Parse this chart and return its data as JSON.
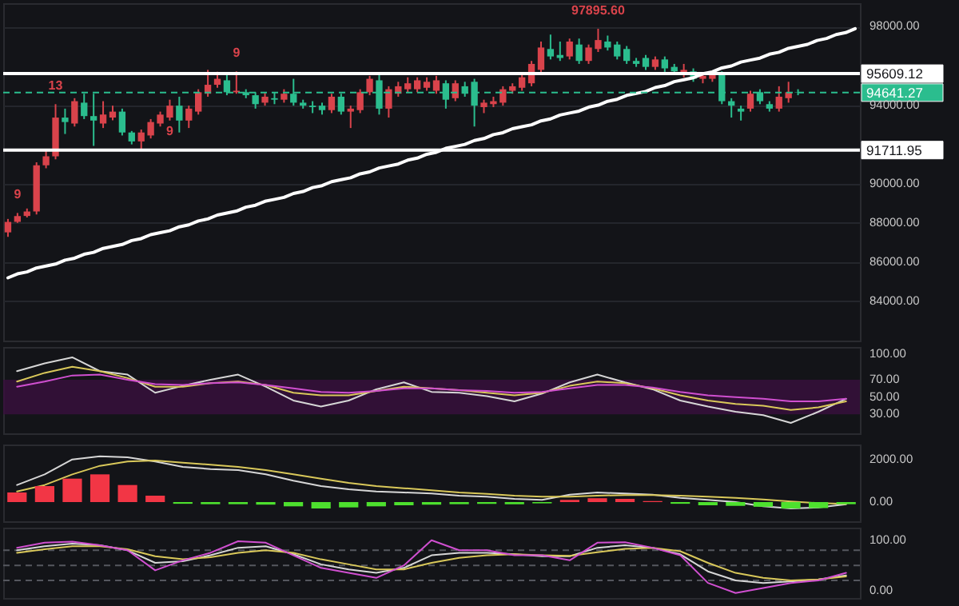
{
  "chart_data": [
    {
      "type": "candlestick",
      "categories": [
        null,
        null,
        null,
        null,
        null,
        null,
        null,
        null,
        null,
        null,
        null,
        null,
        null,
        null,
        null,
        null,
        null,
        null,
        null,
        null,
        null,
        null,
        null,
        null,
        null,
        null,
        null,
        null,
        null,
        null,
        null,
        null,
        null,
        null,
        null,
        null,
        null,
        null,
        null,
        null,
        null,
        null,
        null,
        null,
        null,
        null,
        null,
        null,
        null,
        null,
        null,
        null,
        null,
        null,
        null,
        null,
        null,
        null,
        null,
        null,
        null,
        null,
        null,
        null,
        null,
        null,
        null,
        null,
        null,
        null,
        null,
        null,
        null,
        null,
        null,
        null,
        null,
        null,
        null,
        null,
        null,
        null,
        null,
        null,
        null,
        null,
        null,
        null,
        null,
        null
      ],
      "ohlc": [
        [
          87517,
          88201,
          87289,
          88049
        ],
        [
          88049,
          88505,
          88000,
          88353
        ],
        [
          88353,
          88733,
          88277,
          88581
        ],
        [
          88581,
          91089,
          88429,
          90937
        ],
        [
          90937,
          91697,
          90785,
          91393
        ],
        [
          91393,
          94053,
          91241,
          93369
        ],
        [
          93369,
          93825,
          92533,
          93141
        ],
        [
          93065,
          94357,
          92913,
          94205
        ],
        [
          94129,
          94585,
          93293,
          93445
        ],
        [
          93445,
          94585,
          91925,
          93217
        ],
        [
          93065,
          94205,
          92837,
          93521
        ],
        [
          93369,
          93977,
          93230,
          93673
        ],
        [
          93673,
          93825,
          92457,
          92609
        ],
        [
          92609,
          92685,
          92001,
          92153
        ],
        [
          92153,
          92761,
          91773,
          92609
        ],
        [
          92457,
          93293,
          92305,
          93141
        ],
        [
          93065,
          93673,
          92913,
          93521
        ],
        [
          93369,
          94281,
          93217,
          93977
        ],
        [
          93977,
          94433,
          92609,
          93217
        ],
        [
          93217,
          93977,
          92837,
          93825
        ],
        [
          93673,
          94813,
          93521,
          94661
        ],
        [
          94585,
          95801,
          94433,
          95041
        ],
        [
          95041,
          95700,
          94889,
          95345
        ],
        [
          95269,
          95573,
          94509,
          94661
        ],
        [
          94661,
          95725,
          94585,
          94737
        ],
        [
          94661,
          94813,
          94357,
          94509
        ],
        [
          94509,
          94661,
          93825,
          94053
        ],
        [
          94129,
          94661,
          93977,
          94433
        ],
        [
          94357,
          94661,
          94053,
          94281
        ],
        [
          94281,
          94813,
          94129,
          94585
        ],
        [
          94585,
          95345,
          93977,
          94129
        ],
        [
          94129,
          94281,
          93825,
          93977
        ],
        [
          93977,
          94205,
          93597,
          93901
        ],
        [
          93977,
          94129,
          93521,
          93749
        ],
        [
          93749,
          94585,
          93597,
          94433
        ],
        [
          94433,
          94585,
          93521,
          93673
        ],
        [
          93673,
          93977,
          92837,
          93825
        ],
        [
          93749,
          94813,
          93597,
          94661
        ],
        [
          94661,
          95497,
          94509,
          95345
        ],
        [
          95269,
          95573,
          93521,
          93825
        ],
        [
          93825,
          94965,
          93369,
          94813
        ],
        [
          94585,
          95193,
          94433,
          94965
        ],
        [
          94813,
          95421,
          94661,
          95117
        ],
        [
          94813,
          95421,
          94661,
          95269
        ],
        [
          94889,
          95421,
          94737,
          95193
        ],
        [
          94737,
          95497,
          94585,
          95269
        ],
        [
          95117,
          95269,
          93825,
          94281
        ],
        [
          94357,
          95269,
          94205,
          95117
        ],
        [
          94965,
          95193,
          94433,
          94585
        ],
        [
          95193,
          95345,
          92913,
          93977
        ],
        [
          93901,
          94281,
          93597,
          94129
        ],
        [
          94053,
          94433,
          93901,
          94205
        ],
        [
          94129,
          94965,
          93977,
          94813
        ],
        [
          94737,
          95117,
          94585,
          94965
        ],
        [
          94889,
          95573,
          94737,
          95421
        ],
        [
          95117,
          96257,
          94965,
          96105
        ],
        [
          95801,
          97245,
          95649,
          96941
        ],
        [
          96865,
          97600,
          96333,
          96485
        ],
        [
          96561,
          97245,
          96257,
          96409
        ],
        [
          96485,
          97397,
          96333,
          97245
        ],
        [
          97093,
          97397,
          96105,
          96257
        ],
        [
          96257,
          97093,
          96105,
          96941
        ],
        [
          96865,
          97895.6,
          96713,
          97321
        ],
        [
          97245,
          97549,
          96789,
          96941
        ],
        [
          97093,
          97245,
          96333,
          96485
        ],
        [
          96865,
          97017,
          96105,
          96257
        ],
        [
          96257,
          96409,
          95953,
          96105
        ],
        [
          96409,
          96561,
          95801,
          95953
        ],
        [
          95953,
          96485,
          95801,
          96333
        ],
        [
          96333,
          96485,
          95700,
          95877
        ],
        [
          95953,
          96105,
          95573,
          95725
        ],
        [
          95573,
          96105,
          95421,
          95801
        ],
        [
          95725,
          95877,
          95193,
          95345
        ],
        [
          95345,
          95649,
          95117,
          95497
        ],
        [
          95345,
          95710,
          95193,
          95573
        ],
        [
          95573,
          95725,
          94053,
          94205
        ],
        [
          94205,
          94357,
          93369,
          93977
        ],
        [
          93825,
          93977,
          93217,
          93673
        ],
        [
          93825,
          94737,
          93673,
          94585
        ],
        [
          94661,
          94813,
          94053,
          94205
        ],
        [
          94053,
          94205,
          93673,
          93825
        ],
        [
          93825,
          94965,
          93673,
          94433
        ],
        [
          94357,
          95193,
          94129,
          94661
        ],
        [
          94661,
          94813,
          94509,
          94641.27
        ],
        null,
        null,
        null,
        null,
        null,
        null
      ],
      "colors": [
        "#d9434b",
        "#d9434b",
        "#d9434b",
        "#d9434b",
        "#d9434b",
        "#d9434b",
        "#2bbd8e",
        "#d9434b",
        "#2bbd8e",
        "#2bbd8e",
        "#d9434b",
        "#d9434b",
        "#2bbd8e",
        "#2bbd8e",
        "#d9434b",
        "#d9434b",
        "#d9434b",
        "#d9434b",
        "#2bbd8e",
        "#d9434b",
        "#d9434b",
        "#d9434b",
        "#d9434b",
        "#2bbd8e",
        "#d9434b",
        "#2bbd8e",
        "#2bbd8e",
        "#d9434b",
        "#2bbd8e",
        "#d9434b",
        "#2bbd8e",
        "#2bbd8e",
        "#2bbd8e",
        "#2bbd8e",
        "#d9434b",
        "#2bbd8e",
        "#d9434b",
        "#d9434b",
        "#d9434b",
        "#2bbd8e",
        "#d9434b",
        "#d9434b",
        "#d9434b",
        "#d9434b",
        "#d9434b",
        "#d9434b",
        "#2bbd8e",
        "#d9434b",
        "#2bbd8e",
        "#2bbd8e",
        "#d9434b",
        "#d9434b",
        "#d9434b",
        "#d9434b",
        "#d9434b",
        "#d9434b",
        "#d9434b",
        "#2bbd8e",
        "#2bbd8e",
        "#d9434b",
        "#2bbd8e",
        "#d9434b",
        "#d9434b",
        "#2bbd8e",
        "#2bbd8e",
        "#2bbd8e",
        "#2bbd8e",
        "#2bbd8e",
        "#d9434b",
        "#2bbd8e",
        "#2bbd8e",
        "#d9434b",
        "#2bbd8e",
        "#d9434b",
        "#d9434b",
        "#2bbd8e",
        "#2bbd8e",
        "#2bbd8e",
        "#d9434b",
        "#2bbd8e",
        "#2bbd8e",
        "#d9434b",
        "#d9434b",
        "#2bbd8e",
        null,
        null,
        null,
        null,
        null,
        null
      ],
      "series": [
        {
          "type": "line",
          "color": "#ffffff",
          "values": [
            85200,
            85400,
            85500,
            85700,
            85800,
            85900,
            86100,
            86200,
            86400,
            86500,
            86700,
            86800,
            86900,
            87100,
            87200,
            87400,
            87500,
            87600,
            87800,
            87900,
            88100,
            88200,
            88400,
            88500,
            88600,
            88800,
            88900,
            89100,
            89200,
            89300,
            89500,
            89600,
            89800,
            89900,
            90100,
            90200,
            90300,
            90500,
            90600,
            90800,
            90900,
            91000,
            91200,
            91300,
            91500,
            91600,
            91800,
            91900,
            92000,
            92200,
            92300,
            92500,
            92600,
            92800,
            92900,
            93000,
            93200,
            93300,
            93500,
            93600,
            93700,
            93900,
            94000,
            94200,
            94300,
            94500,
            94600,
            94700,
            94900,
            95000,
            95200,
            95300,
            95400,
            95600,
            95700,
            95900,
            96000,
            96200,
            96300,
            96400,
            96600,
            96700,
            96900,
            97000,
            97100,
            97300,
            97400,
            97600,
            97700,
            97900
          ]
        }
      ],
      "ylim": [
        82000,
        99200
      ],
      "yticks": [
        {
          "value": 84000,
          "label": "84000.00"
        },
        {
          "value": 86000,
          "label": "86000.00"
        },
        {
          "value": 88000,
          "label": "88000.00"
        },
        {
          "value": 90000,
          "label": "90000.00"
        },
        {
          "value": 94000,
          "label": "94000.00"
        },
        {
          "value": 98000,
          "label": "98000.00"
        }
      ],
      "tick_labels": "y",
      "grid": "y",
      "ref_lines": [
        {
          "axis": "y",
          "value": 95609.12,
          "label": "95609.12",
          "color": "#ffffff",
          "line_style": "solid"
        },
        {
          "axis": "y",
          "value": 91711.95,
          "label": "91711.95",
          "color": "#ffffff",
          "line_style": "solid"
        },
        {
          "axis": "y",
          "value": 94641.27,
          "label": "94641.27",
          "color": "#2bbd8e",
          "line_style": "dashed"
        }
      ],
      "annotations": [
        {
          "text": "97895.60",
          "y": 97895.6
        },
        {
          "text": "9",
          "y": 88505
        },
        {
          "text": "13",
          "y": 94053
        },
        {
          "text": "9",
          "y": 95725
        },
        {
          "text": "9",
          "y": 93217
        }
      ]
    },
    {
      "type": "line",
      "categories": [
        null,
        null,
        null,
        null,
        null,
        null,
        null,
        null,
        null,
        null,
        null,
        null,
        null,
        null,
        null,
        null,
        null,
        null,
        null,
        null,
        null,
        null,
        null,
        null,
        null,
        null,
        null,
        null,
        null,
        null,
        null
      ],
      "series": [
        {
          "color": "#d6d6d6",
          "values": [
            80,
            89,
            96,
            80,
            76,
            55,
            63,
            70,
            76,
            62,
            46,
            39,
            46,
            59,
            67,
            56,
            55,
            51,
            45,
            54,
            67,
            76,
            67,
            59,
            46,
            39,
            33,
            29,
            20,
            33,
            48
          ]
        },
        {
          "color": "#d9c85a",
          "values": [
            68,
            78,
            85,
            80,
            72,
            62,
            62,
            66,
            68,
            64,
            55,
            52,
            52,
            57,
            62,
            60,
            58,
            55,
            52,
            55,
            63,
            68,
            66,
            60,
            52,
            46,
            42,
            40,
            35,
            38,
            45
          ]
        },
        {
          "color": "#d04fd0",
          "values": [
            62,
            68,
            75,
            76,
            70,
            65,
            64,
            66,
            67,
            64,
            60,
            56,
            55,
            57,
            60,
            60,
            58,
            57,
            55,
            56,
            60,
            64,
            64,
            61,
            56,
            52,
            50,
            48,
            45,
            45,
            48
          ]
        }
      ],
      "ylim": [
        8,
        108
      ],
      "yticks": [
        {
          "value": 30,
          "label": "30.00"
        },
        {
          "value": 50,
          "label": "50.00"
        },
        {
          "value": 70,
          "label": "70.00"
        },
        {
          "value": 100,
          "label": "100.00"
        }
      ],
      "tick_labels": "y",
      "bands": [
        {
          "axis": "y",
          "from": 30,
          "to": 70,
          "color": "#3a0f3f"
        }
      ]
    },
    {
      "type": "bar",
      "categories": [
        null,
        null,
        null,
        null,
        null,
        null,
        null,
        null,
        null,
        null,
        null,
        null,
        null,
        null,
        null,
        null,
        null,
        null,
        null,
        null,
        null,
        null,
        null,
        null,
        null,
        null,
        null,
        null,
        null,
        null,
        null
      ],
      "values": [
        450,
        750,
        1100,
        1300,
        800,
        300,
        -80,
        -100,
        -100,
        -120,
        -200,
        -300,
        -250,
        -200,
        -150,
        -120,
        -100,
        -80,
        -100,
        -60,
        100,
        180,
        150,
        50,
        -80,
        -150,
        -180,
        -220,
        -300,
        -280,
        -100
      ],
      "colors": [
        "#f23645",
        "#f23645",
        "#f23645",
        "#f23645",
        "#f23645",
        "#f23645",
        "#4de02e",
        "#4de02e",
        "#4de02e",
        "#4de02e",
        "#4de02e",
        "#4de02e",
        "#4de02e",
        "#4de02e",
        "#4de02e",
        "#4de02e",
        "#4de02e",
        "#4de02e",
        "#4de02e",
        "#4de02e",
        "#f23645",
        "#f23645",
        "#f23645",
        "#f23645",
        "#4de02e",
        "#4de02e",
        "#4de02e",
        "#4de02e",
        "#4de02e",
        "#4de02e",
        "#4de02e"
      ],
      "series": [
        {
          "type": "line",
          "color": "#d6d6d6",
          "values": [
            800,
            1300,
            2000,
            2150,
            2100,
            1900,
            1650,
            1550,
            1500,
            1300,
            1000,
            750,
            600,
            500,
            450,
            400,
            300,
            250,
            150,
            100,
            350,
            450,
            400,
            350,
            200,
            100,
            0,
            -200,
            -300,
            -250,
            -100
          ]
        },
        {
          "type": "line",
          "color": "#d9c85a",
          "values": [
            500,
            800,
            1300,
            1700,
            1900,
            1950,
            1850,
            1750,
            1650,
            1500,
            1300,
            1100,
            900,
            750,
            650,
            550,
            450,
            380,
            300,
            250,
            250,
            300,
            330,
            330,
            300,
            250,
            200,
            120,
            30,
            -50,
            -80
          ]
        }
      ],
      "ylim": [
        -900,
        2700
      ],
      "yticks": [
        {
          "value": 0,
          "label": "0.00"
        },
        {
          "value": 2000,
          "label": "2000.00"
        }
      ],
      "tick_labels": "y"
    },
    {
      "type": "line",
      "categories": [
        null,
        null,
        null,
        null,
        null,
        null,
        null,
        null,
        null,
        null,
        null,
        null,
        null,
        null,
        null,
        null,
        null,
        null,
        null,
        null,
        null,
        null,
        null,
        null,
        null,
        null,
        null,
        null,
        null,
        null,
        null
      ],
      "series": [
        {
          "color": "#d6d6d6",
          "values": [
            80,
            88,
            93,
            90,
            80,
            55,
            58,
            70,
            85,
            88,
            72,
            52,
            42,
            35,
            45,
            70,
            75,
            75,
            72,
            68,
            68,
            85,
            90,
            85,
            72,
            38,
            20,
            15,
            18,
            22,
            30
          ]
        },
        {
          "color": "#d9c85a",
          "values": [
            75,
            82,
            88,
            88,
            82,
            68,
            62,
            66,
            75,
            80,
            75,
            62,
            52,
            42,
            42,
            55,
            65,
            70,
            72,
            70,
            69,
            76,
            83,
            85,
            78,
            55,
            35,
            25,
            20,
            22,
            28
          ]
        },
        {
          "color": "#d04fd0",
          "values": [
            85,
            95,
            97,
            90,
            80,
            40,
            60,
            75,
            98,
            95,
            70,
            45,
            35,
            25,
            50,
            100,
            80,
            80,
            70,
            70,
            60,
            95,
            96,
            85,
            70,
            15,
            -5,
            5,
            15,
            20,
            35
          ]
        }
      ],
      "ylim": [
        -15,
        125
      ],
      "yticks": [
        {
          "value": 0,
          "label": "0.00"
        },
        {
          "value": 100,
          "label": "100.00"
        }
      ],
      "tick_labels": "y",
      "ref_lines": [
        {
          "axis": "y",
          "value": 80,
          "color": "#55575e",
          "line_style": "dashed"
        },
        {
          "axis": "y",
          "value": 50,
          "color": "#55575e",
          "line_style": "dashed"
        },
        {
          "axis": "y",
          "value": 20,
          "color": "#55575e",
          "line_style": "dashed"
        }
      ]
    }
  ]
}
